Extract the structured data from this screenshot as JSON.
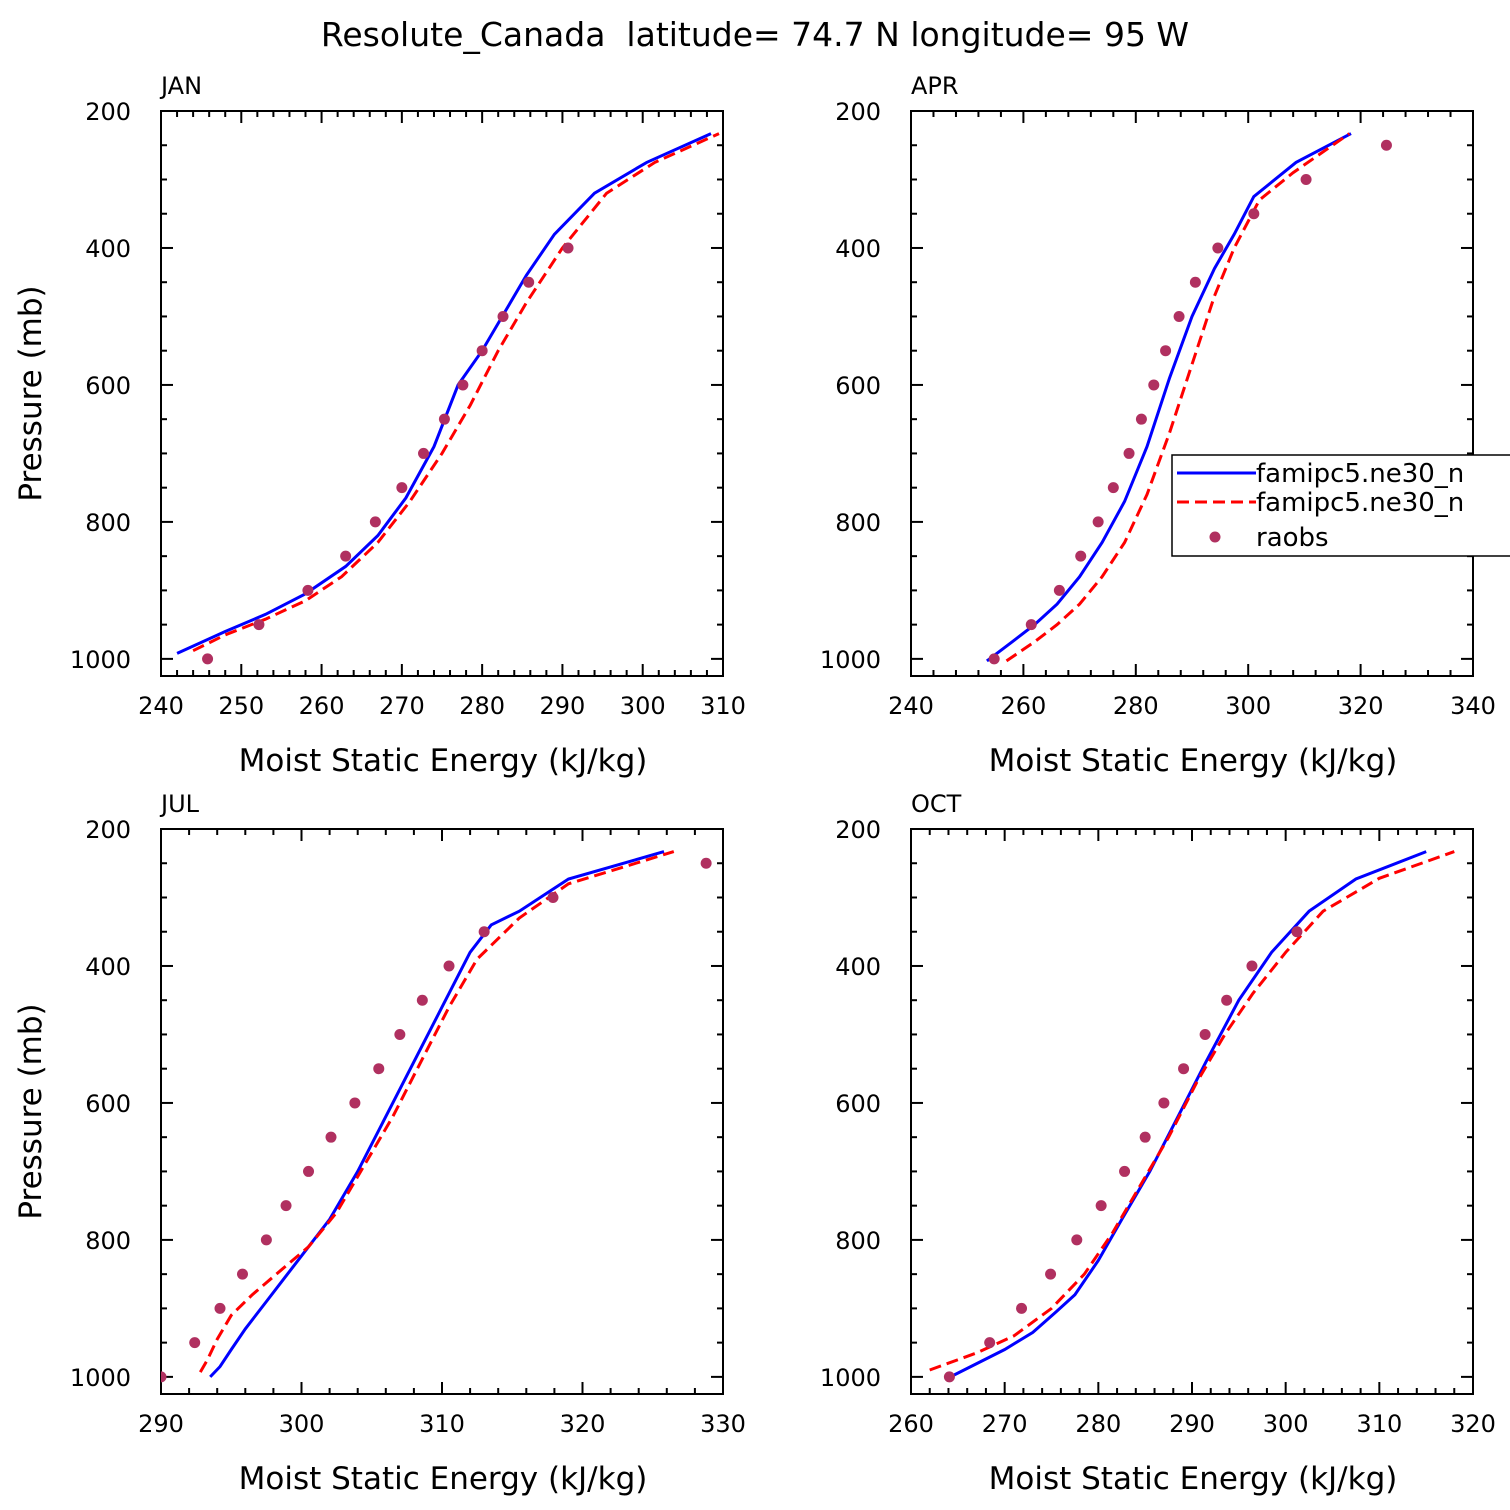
{
  "figure": {
    "title": "Resolute_Canada  latitude= 74.7 N longitude= 95 W"
  },
  "legend": {
    "entries": [
      {
        "label": "famipc5.ne30_n",
        "color": "#0000ff",
        "style": "solid"
      },
      {
        "label": "famipc5.ne30_n",
        "color": "#ff0000",
        "style": "dashed"
      },
      {
        "label": "raobs",
        "color": "#b03060",
        "style": "dot"
      }
    ]
  },
  "chart_data": [
    {
      "type": "line",
      "title": "JAN",
      "xlabel": "Moist Static Energy (kJ/kg)",
      "ylabel": "Pressure (mb)",
      "xlim": [
        240,
        310
      ],
      "ylim": [
        200,
        1025
      ],
      "y_reversed": true,
      "xticks": [
        240,
        250,
        260,
        270,
        280,
        290,
        300,
        310
      ],
      "yticks": [
        200,
        400,
        600,
        800,
        1000
      ],
      "series": [
        {
          "name": "famipc5.ne30_n",
          "color": "#0000ff",
          "style": "solid",
          "x": [
            242,
            248,
            253,
            258,
            263,
            267,
            270.5,
            274,
            277,
            280,
            282.5,
            285.5,
            289,
            294,
            300.5,
            308.5
          ],
          "y": [
            992,
            960,
            935,
            905,
            865,
            820,
            765,
            690,
            600,
            550,
            500,
            440,
            380,
            320,
            275,
            233
          ]
        },
        {
          "name": "famipc5.ne30_n",
          "color": "#ff0000",
          "style": "dashed",
          "x": [
            244,
            248,
            253,
            258,
            262.5,
            267,
            271,
            275,
            278.5,
            282,
            285.5,
            290,
            295.5,
            301.5,
            309.5
          ],
          "y": [
            988,
            965,
            942,
            915,
            880,
            830,
            770,
            700,
            630,
            550,
            480,
            400,
            320,
            275,
            233
          ]
        },
        {
          "name": "raobs",
          "color": "#b03060",
          "style": "dot",
          "x": [
            245.8,
            252.2,
            258.3,
            263,
            266.7,
            270,
            272.7,
            275.3,
            277.6,
            280,
            282.6,
            285.8,
            290.7
          ],
          "y": [
            1000,
            950,
            900,
            850,
            800,
            750,
            700,
            650,
            600,
            550,
            500,
            450,
            400
          ]
        }
      ]
    },
    {
      "type": "line",
      "title": "APR",
      "xlabel": "Moist Static Energy (kJ/kg)",
      "ylabel": "",
      "xlim": [
        240,
        340
      ],
      "ylim": [
        200,
        1025
      ],
      "y_reversed": true,
      "xticks": [
        240,
        260,
        280,
        300,
        320,
        340
      ],
      "yticks": [
        200,
        400,
        600,
        800,
        1000
      ],
      "series": [
        {
          "name": "famipc5.ne30_n",
          "color": "#0000ff",
          "style": "solid",
          "x": [
            253.5,
            258,
            262,
            266,
            270,
            274,
            278,
            282,
            286,
            290,
            294,
            297.5,
            301,
            308.5,
            318.3
          ],
          "y": [
            1003,
            975,
            950,
            920,
            880,
            830,
            770,
            690,
            590,
            500,
            430,
            380,
            325,
            275,
            233
          ]
        },
        {
          "name": "famipc5.ne30_n",
          "color": "#ff0000",
          "style": "dashed",
          "x": [
            257,
            262,
            266,
            270,
            274,
            278,
            282,
            286,
            290,
            294,
            297.5,
            302,
            308,
            318
          ],
          "y": [
            1003,
            975,
            950,
            920,
            880,
            830,
            760,
            670,
            570,
            470,
            400,
            330,
            290,
            233
          ]
        },
        {
          "name": "raobs",
          "color": "#b03060",
          "style": "dot",
          "x": [
            254.8,
            261.4,
            266.4,
            270.2,
            273.3,
            276,
            278.8,
            281,
            283.2,
            285.3,
            287.7,
            290.6,
            294.6,
            301,
            310.3,
            324.6
          ],
          "y": [
            1000,
            950,
            900,
            850,
            800,
            750,
            700,
            650,
            600,
            550,
            500,
            450,
            400,
            350,
            300,
            250
          ]
        }
      ]
    },
    {
      "type": "line",
      "title": "JUL",
      "xlabel": "Moist Static Energy (kJ/kg)",
      "ylabel": "Pressure (mb)",
      "xlim": [
        290,
        330
      ],
      "ylim": [
        200,
        1025
      ],
      "y_reversed": true,
      "xticks": [
        290,
        300,
        310,
        320,
        330
      ],
      "yticks": [
        200,
        400,
        600,
        800,
        1000
      ],
      "series": [
        {
          "name": "famipc5.ne30_n",
          "color": "#0000ff",
          "style": "solid",
          "x": [
            293.5,
            294.2,
            295,
            296,
            297.5,
            299,
            300.5,
            302,
            304,
            306,
            308,
            310,
            312,
            313.5,
            315.5,
            319,
            325.8
          ],
          "y": [
            1000,
            985,
            960,
            930,
            890,
            850,
            810,
            770,
            700,
            620,
            540,
            460,
            380,
            340,
            320,
            273,
            233
          ]
        },
        {
          "name": "famipc5.ne30_n",
          "color": "#ff0000",
          "style": "dashed",
          "x": [
            292.8,
            293.3,
            294,
            295,
            296.5,
            298.5,
            300.5,
            302.5,
            304.5,
            306.5,
            308.5,
            310.5,
            312.5,
            315.5,
            319,
            326.5
          ],
          "y": [
            993,
            975,
            945,
            910,
            880,
            845,
            810,
            760,
            690,
            620,
            540,
            460,
            390,
            330,
            280,
            233
          ]
        },
        {
          "name": "raobs",
          "color": "#b03060",
          "style": "dot",
          "x": [
            290,
            292.4,
            294.2,
            295.8,
            297.5,
            298.9,
            300.5,
            302.1,
            303.8,
            305.5,
            307,
            308.6,
            310.5,
            313,
            317.9,
            328.8
          ],
          "y": [
            1000,
            950,
            900,
            850,
            800,
            750,
            700,
            650,
            600,
            550,
            500,
            450,
            400,
            350,
            300,
            250
          ]
        }
      ]
    },
    {
      "type": "line",
      "title": "OCT",
      "xlabel": "Moist Static Energy (kJ/kg)",
      "ylabel": "",
      "xlim": [
        260,
        320
      ],
      "ylim": [
        200,
        1025
      ],
      "y_reversed": true,
      "xticks": [
        260,
        270,
        280,
        290,
        300,
        310,
        320
      ],
      "yticks": [
        200,
        400,
        600,
        800,
        1000
      ],
      "series": [
        {
          "name": "famipc5.ne30_n",
          "color": "#0000ff",
          "style": "solid",
          "x": [
            264.5,
            270,
            273,
            275.5,
            277.5,
            280,
            282.5,
            285.5,
            288.5,
            291.5,
            295,
            298.5,
            302.5,
            307.5,
            315
          ],
          "y": [
            998,
            960,
            935,
            905,
            880,
            830,
            770,
            700,
            620,
            540,
            450,
            380,
            320,
            273,
            233
          ]
        },
        {
          "name": "famipc5.ne30_n",
          "color": "#ff0000",
          "style": "dashed",
          "x": [
            262,
            267,
            271,
            275,
            278.5,
            281.5,
            284.5,
            287.5,
            290.5,
            293.5,
            296.5,
            300,
            304,
            310,
            318
          ],
          "y": [
            990,
            965,
            940,
            900,
            850,
            790,
            720,
            650,
            570,
            500,
            440,
            380,
            320,
            272,
            233
          ]
        },
        {
          "name": "raobs",
          "color": "#b03060",
          "style": "dot",
          "x": [
            264.1,
            268.4,
            271.8,
            274.9,
            277.7,
            280.3,
            282.8,
            285,
            287,
            289.1,
            291.4,
            293.7,
            296.4,
            301.2
          ],
          "y": [
            1000,
            950,
            900,
            850,
            800,
            750,
            700,
            650,
            600,
            550,
            500,
            450,
            400,
            350
          ]
        }
      ]
    }
  ]
}
